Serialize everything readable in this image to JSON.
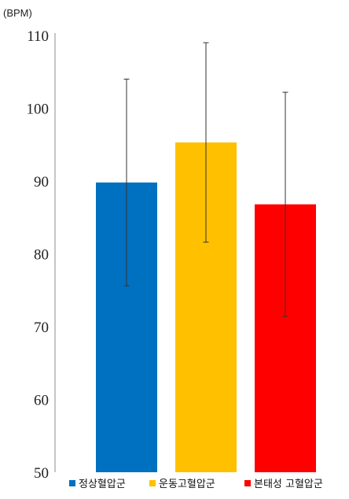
{
  "chart_data": {
    "type": "bar",
    "title": "",
    "xlabel": "",
    "ylabel": "",
    "y_unit_label": "(BPM)",
    "ylim": [
      50,
      110
    ],
    "yticks": [
      50,
      60,
      70,
      80,
      90,
      100,
      110
    ],
    "grid": false,
    "legend_position": "bottom",
    "categories": [
      "정상혈압군",
      "운동고혈압군",
      "본태성 고혈압군"
    ],
    "values": [
      89.8,
      95.3,
      86.8
    ],
    "error_low": [
      75.6,
      81.6,
      71.4
    ],
    "error_high": [
      104.0,
      109.0,
      102.2
    ],
    "colors": [
      "#0070C0",
      "#FFC000",
      "#FF0000"
    ]
  }
}
